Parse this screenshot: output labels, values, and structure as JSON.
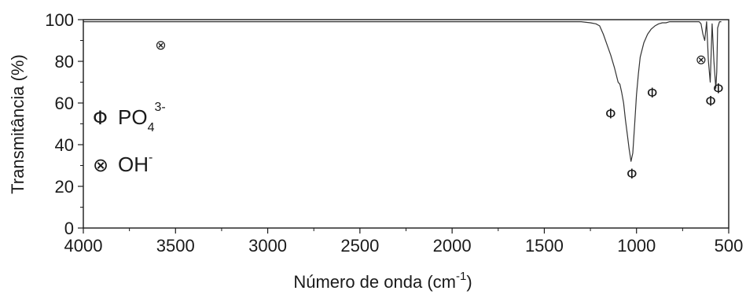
{
  "chart_data": {
    "type": "line",
    "xlabel": "Número de onda (cm",
    "xlabel_sup": "-1",
    "xlabel_end": ")",
    "ylabel": "Transmitância (%)",
    "xlim": [
      4000,
      500
    ],
    "ylim": [
      0,
      100
    ],
    "x_ticks": [
      4000,
      3500,
      3000,
      2500,
      2000,
      1500,
      1000,
      500
    ],
    "y_ticks": [
      0,
      20,
      40,
      60,
      80,
      100
    ],
    "grid": false,
    "series": [
      {
        "x": [
          4000,
          3800,
          3600,
          3400,
          3200,
          3000,
          2800,
          2600,
          2400,
          2200,
          2000,
          1800,
          1600,
          1400,
          1300,
          1250,
          1220,
          1200,
          1180,
          1160,
          1140,
          1120,
          1100,
          1090,
          1080,
          1070,
          1060,
          1050,
          1040,
          1030,
          1020,
          1010,
          1000,
          990,
          980,
          960,
          940,
          920,
          900,
          880,
          860,
          840,
          820,
          800,
          780,
          760,
          740,
          720,
          700,
          680,
          660,
          650,
          640,
          630,
          620,
          610,
          600,
          590,
          580,
          570,
          565,
          560,
          550,
          540
        ],
        "y": [
          99,
          99,
          99,
          99,
          99,
          99,
          99,
          99,
          99,
          99,
          99,
          99,
          99,
          99,
          99,
          98.5,
          98,
          97,
          93,
          88,
          83,
          77,
          70,
          69,
          65,
          60,
          52,
          45,
          38,
          32,
          36,
          50,
          64,
          74,
          82,
          89,
          93,
          95.5,
          97,
          98,
          98.5,
          98.5,
          99,
          99,
          99,
          99,
          99,
          99,
          99,
          99,
          99,
          98,
          93,
          90,
          99,
          80,
          70,
          98,
          80,
          67,
          75,
          96,
          99,
          99
        ]
      }
    ],
    "annotations": [
      {
        "symbol": "⊗",
        "x": 3580,
        "y": 88
      },
      {
        "symbol": "⊗",
        "x": 650,
        "y": 81
      },
      {
        "symbol": "Φ",
        "x": 1140,
        "y": 55
      },
      {
        "symbol": "Φ",
        "x": 915,
        "y": 65
      },
      {
        "symbol": "Φ",
        "x": 1025,
        "y": 26
      },
      {
        "symbol": "Φ",
        "x": 598,
        "y": 61
      },
      {
        "symbol": "Φ",
        "x": 556,
        "y": 67
      }
    ],
    "legend": [
      {
        "symbol": "Φ",
        "label": "PO",
        "sub": "4",
        "sup": "3-"
      },
      {
        "symbol": "⊗",
        "label": "OH",
        "sub": "",
        "sup": "-"
      }
    ],
    "line_color": "#333333"
  }
}
